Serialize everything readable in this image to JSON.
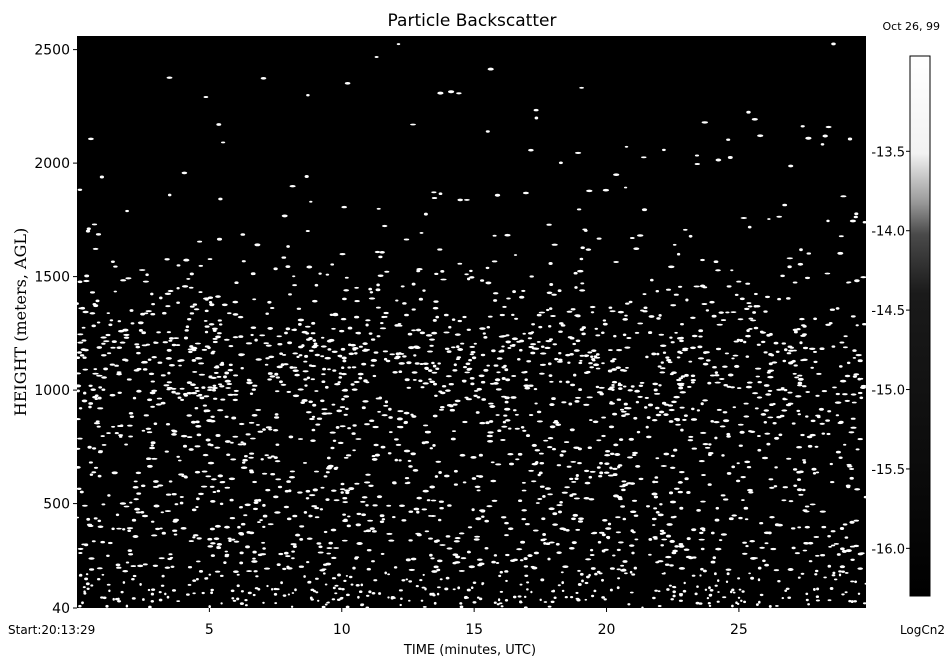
{
  "chart_data": {
    "type": "heatmap",
    "title": "Particle Backscatter",
    "date": "Oct 26, 99",
    "xlabel": "TIME (minutes, UTC)",
    "ylabel": "HEIGHT (meters, AGL)",
    "start_label": "Start:20:13:29",
    "x_ticks": [
      {
        "value": 5,
        "label": "5"
      },
      {
        "value": 10,
        "label": "10"
      },
      {
        "value": 15,
        "label": "15"
      },
      {
        "value": 20,
        "label": "20"
      },
      {
        "value": 25,
        "label": "25"
      }
    ],
    "y_ticks": [
      {
        "value": 40,
        "label": "40"
      },
      {
        "value": 500,
        "label": "500"
      },
      {
        "value": 1000,
        "label": "1000"
      },
      {
        "value": 1500,
        "label": "1500"
      },
      {
        "value": 2000,
        "label": "2000"
      },
      {
        "value": 2500,
        "label": "2500"
      }
    ],
    "xlim": [
      0,
      29.8
    ],
    "ylim": [
      40,
      2560
    ],
    "colorbar": {
      "label": "LogCn2",
      "range": [
        -16.3,
        -12.9
      ],
      "ticks": [
        {
          "value": -13.5,
          "label": "-13.5"
        },
        {
          "value": -14.0,
          "label": "-14.0"
        },
        {
          "value": -14.5,
          "label": "-14.5"
        },
        {
          "value": -15.0,
          "label": "-15.0"
        },
        {
          "value": -15.5,
          "label": "-15.5"
        },
        {
          "value": -16.0,
          "label": "-16.0"
        }
      ],
      "colors": [
        "#000000",
        "#ffffff"
      ]
    },
    "field_description_colors": {
      "background": "#000000",
      "echo": "#ffffff"
    },
    "echo_density_by_height": [
      {
        "height": 40,
        "density": 1.0
      },
      {
        "height": 150,
        "density": 0.8
      },
      {
        "height": 300,
        "density": 0.65
      },
      {
        "height": 500,
        "density": 0.55
      },
      {
        "height": 700,
        "density": 0.5
      },
      {
        "height": 900,
        "density": 0.7
      },
      {
        "height": 1000,
        "density": 1.0
      },
      {
        "height": 1150,
        "density": 0.95
      },
      {
        "height": 1300,
        "density": 0.7
      },
      {
        "height": 1450,
        "density": 0.35
      },
      {
        "height": 1600,
        "density": 0.15
      },
      {
        "height": 1800,
        "density": 0.05
      },
      {
        "height": 2500,
        "density": 0.02
      }
    ]
  }
}
